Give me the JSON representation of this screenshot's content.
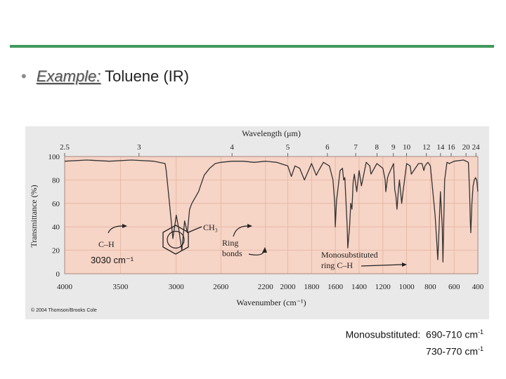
{
  "slide": {
    "bullet": "•",
    "example_label": "Example:",
    "title_rest": " Toluene (IR)",
    "accent_color": "#3f9a5c"
  },
  "figure": {
    "copyright": "© 2004 Thomson/Brooks Cole",
    "wavelength_label": "Wavelength (μm)",
    "wavenumber_label": "Wavenumber (cm⁻¹)",
    "ylabel": "Transmittance (%)",
    "annotations": {
      "ch": "C–H",
      "ch3": "CH₃",
      "ring_bonds_1": "Ring",
      "ring_bonds_2": "bonds",
      "mono_1": "Monosubstituted",
      "mono_2": "ring C–H",
      "cm3030": "3030 cm⁻¹"
    },
    "colors": {
      "plot_bg": "#f6d4c6",
      "figure_bg": "#e9e9e9",
      "trace": "#333333"
    }
  },
  "note": {
    "label": "Monosubstituted",
    "line1_value": "690-710 cm",
    "line2_value": "730-770 cm",
    "sup": "-1"
  },
  "chart_data": {
    "type": "line",
    "title": "",
    "xlabel": "Wavenumber (cm⁻¹)",
    "x2label": "Wavelength (μm)",
    "ylabel": "Transmittance (%)",
    "ylim": [
      0,
      100
    ],
    "y_ticks": [
      0,
      20,
      40,
      60,
      80,
      100
    ],
    "x_ticks": [
      4000,
      3500,
      3000,
      2600,
      2200,
      2000,
      1800,
      1600,
      1400,
      1200,
      1000,
      800,
      600,
      400
    ],
    "wavelength_ticks": [
      2.5,
      3,
      4,
      5,
      6,
      7,
      8,
      9,
      10,
      12,
      14,
      16,
      20,
      24
    ],
    "grid": true,
    "series": [
      {
        "x": [
          4000,
          3800,
          3600,
          3400,
          3200,
          3100,
          3090,
          3060,
          3030,
          3000,
          2980,
          2950,
          2925,
          2900,
          2880,
          2860,
          2800,
          2750,
          2700,
          2650,
          2600,
          2500,
          2400,
          2300,
          2200,
          2100,
          2000,
          1970,
          1940,
          1900,
          1860,
          1800,
          1760,
          1740,
          1700,
          1650,
          1620,
          1605,
          1600,
          1590,
          1560,
          1540,
          1530,
          1520,
          1500,
          1495,
          1480,
          1470,
          1460,
          1450,
          1440,
          1420,
          1400,
          1380,
          1340,
          1310,
          1300,
          1250,
          1200,
          1180,
          1175,
          1160,
          1150,
          1110,
          1100,
          1090,
          1081,
          1070,
          1060,
          1041,
          1030,
          1000,
          970,
          960,
          900,
          870,
          855,
          845,
          830,
          820,
          800,
          760,
          745,
          738,
          730,
          715,
          700,
          694,
          688,
          680,
          660,
          640,
          600,
          520,
          480,
          470,
          464,
          460,
          450,
          440,
          430,
          420,
          410,
          400
        ],
        "y": [
          96,
          97,
          96,
          97,
          96,
          94,
          88,
          60,
          30,
          50,
          40,
          20,
          45,
          35,
          55,
          60,
          70,
          84,
          90,
          94,
          95,
          96,
          96,
          95,
          96,
          95,
          92,
          83,
          92,
          90,
          80,
          94,
          84,
          88,
          95,
          92,
          80,
          60,
          40,
          62,
          88,
          90,
          80,
          82,
          40,
          22,
          40,
          60,
          55,
          78,
          85,
          70,
          88,
          75,
          95,
          92,
          85,
          94,
          90,
          80,
          70,
          82,
          85,
          94,
          72,
          66,
          55,
          70,
          80,
          60,
          70,
          94,
          92,
          85,
          94,
          94,
          88,
          92,
          94,
          95,
          92,
          50,
          25,
          12,
          30,
          70,
          40,
          10,
          40,
          80,
          95,
          94,
          96,
          97,
          95,
          70,
          45,
          35,
          60,
          75,
          80,
          82,
          80,
          70
        ]
      }
    ]
  }
}
